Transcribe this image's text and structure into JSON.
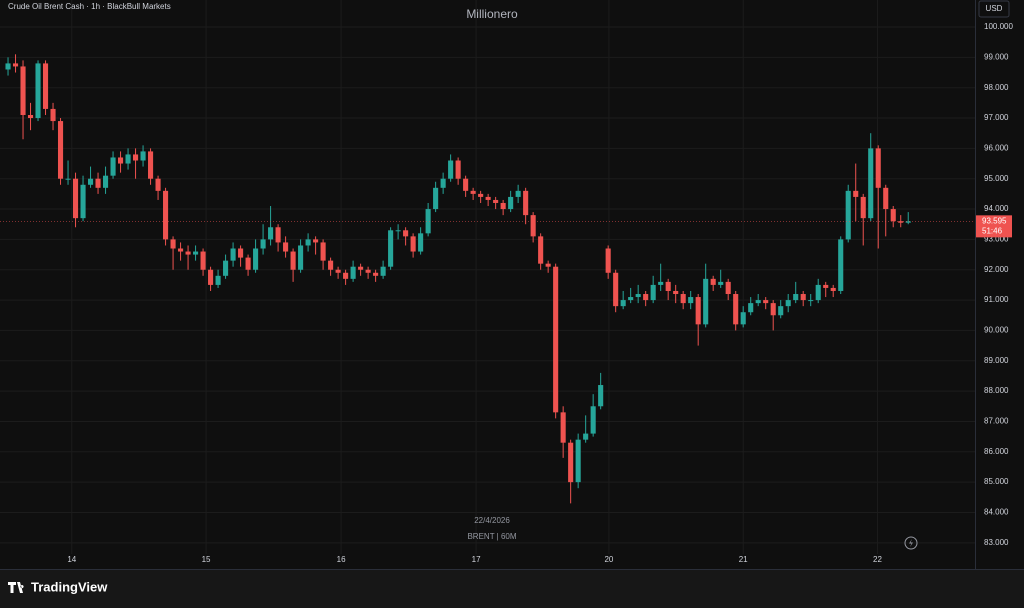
{
  "chart_data": {
    "type": "candlestick",
    "title": "Crude Oil Brent Cash · 1h · BlackBull Markets",
    "watermark": "Millionero",
    "currency": "USD",
    "countdown": "51:46",
    "date_label": "22/4/2026",
    "symbol_label": "BRENT | 60M",
    "brand": "TradingView",
    "up_color": "#26a69a",
    "down_color": "#ef5350",
    "grid": true,
    "x": [
      0,
      1,
      2,
      3,
      4,
      5,
      6,
      7,
      8,
      9,
      10,
      11,
      12,
      13,
      14,
      15,
      16,
      17,
      18,
      19,
      20,
      21,
      22,
      23,
      24,
      25,
      26,
      27,
      28,
      29,
      30,
      31,
      32,
      33,
      34,
      35,
      36,
      37,
      38,
      39,
      40,
      41,
      42,
      43,
      44,
      45,
      46,
      47,
      48,
      49,
      50,
      51,
      52,
      53,
      54,
      55,
      56,
      57,
      58,
      59,
      60,
      61,
      62,
      63,
      64,
      65,
      66,
      67,
      68,
      69,
      70,
      71,
      72,
      73,
      74,
      75,
      76,
      77,
      78,
      79,
      80,
      81,
      82,
      83,
      84,
      85,
      86,
      87,
      88,
      89,
      90,
      91,
      92,
      93,
      94,
      95,
      96,
      97,
      98,
      99,
      100,
      101,
      102,
      103,
      104,
      105,
      106,
      107,
      108,
      109,
      110,
      111,
      112,
      113,
      114,
      115,
      116,
      117,
      118,
      119,
      120
    ],
    "open": [
      98.6,
      98.8,
      98.7,
      97.1,
      97.0,
      98.8,
      97.3,
      96.9,
      95.0,
      95.0,
      93.7,
      94.8,
      95.0,
      94.7,
      95.1,
      95.7,
      95.5,
      95.8,
      95.6,
      95.9,
      95.0,
      94.6,
      93.0,
      92.7,
      92.6,
      92.5,
      92.6,
      92.0,
      91.5,
      91.8,
      92.3,
      92.7,
      92.4,
      92.0,
      92.7,
      93.0,
      93.4,
      92.9,
      92.6,
      92.0,
      92.8,
      93.0,
      92.9,
      92.3,
      92.0,
      91.9,
      91.7,
      92.1,
      92.0,
      91.9,
      91.8,
      92.1,
      93.3,
      93.3,
      93.1,
      92.6,
      93.2,
      94.0,
      94.7,
      95.0,
      95.6,
      95.0,
      94.6,
      94.5,
      94.4,
      94.3,
      94.2,
      94.0,
      94.4,
      94.6,
      93.8,
      93.1,
      92.2,
      92.1,
      87.3,
      86.3,
      85.0,
      86.4,
      86.6,
      87.5,
      92.7,
      91.9,
      90.8,
      91.0,
      91.1,
      91.2,
      91.0,
      91.5,
      91.6,
      91.3,
      91.2,
      90.9,
      91.1,
      90.2,
      91.7,
      91.5,
      91.6,
      91.2,
      90.2,
      90.6,
      90.9,
      91.0,
      90.9,
      90.5,
      90.8,
      91.0,
      91.2,
      91.0,
      91.0,
      91.5,
      91.4,
      91.3,
      93.0,
      94.6,
      94.4,
      93.7,
      96.0,
      94.7,
      94.0,
      93.6,
      93.55
    ],
    "high": [
      99.0,
      99.1,
      98.9,
      97.5,
      98.9,
      98.9,
      97.5,
      97.0,
      95.6,
      95.2,
      95.1,
      95.4,
      95.2,
      95.4,
      95.9,
      95.9,
      96.0,
      96.0,
      96.1,
      96.0,
      95.1,
      94.7,
      93.1,
      92.9,
      92.8,
      92.8,
      92.7,
      92.1,
      92.0,
      92.5,
      92.9,
      92.8,
      92.5,
      93.0,
      93.5,
      94.1,
      93.5,
      93.1,
      92.7,
      93.0,
      93.2,
      93.1,
      93.0,
      92.4,
      92.1,
      92.0,
      92.3,
      92.2,
      92.1,
      92.0,
      92.3,
      93.4,
      93.5,
      93.4,
      93.2,
      93.4,
      94.2,
      94.9,
      95.2,
      95.8,
      95.7,
      95.1,
      94.7,
      94.6,
      94.5,
      94.4,
      94.3,
      94.6,
      94.8,
      94.7,
      93.9,
      93.2,
      92.3,
      92.2,
      87.5,
      86.4,
      86.6,
      87.2,
      87.9,
      88.6,
      92.8,
      92.0,
      91.3,
      91.4,
      91.5,
      91.3,
      91.8,
      92.2,
      91.7,
      91.5,
      91.3,
      91.3,
      91.2,
      92.2,
      91.8,
      92.0,
      91.7,
      91.3,
      90.8,
      91.1,
      91.2,
      91.1,
      91.0,
      91.0,
      91.2,
      91.6,
      91.3,
      91.2,
      91.7,
      91.6,
      91.5,
      93.1,
      94.8,
      95.5,
      94.5,
      96.5,
      96.1,
      94.8,
      94.1,
      93.8,
      93.9
    ],
    "low": [
      98.4,
      98.5,
      96.3,
      96.6,
      96.9,
      97.1,
      96.6,
      94.8,
      94.8,
      93.4,
      93.6,
      94.7,
      94.5,
      94.5,
      95.0,
      95.2,
      95.3,
      95.0,
      95.4,
      94.8,
      94.3,
      92.8,
      92.0,
      92.3,
      92.0,
      92.3,
      91.8,
      91.3,
      91.4,
      91.7,
      92.1,
      92.1,
      91.8,
      91.9,
      92.5,
      92.8,
      92.6,
      92.4,
      91.6,
      91.9,
      92.6,
      92.5,
      92.0,
      91.8,
      91.7,
      91.5,
      91.6,
      91.8,
      91.7,
      91.6,
      91.7,
      92.0,
      93.0,
      92.8,
      92.4,
      92.5,
      93.1,
      93.9,
      94.5,
      94.9,
      94.8,
      94.4,
      94.3,
      94.2,
      94.1,
      94.0,
      93.8,
      93.9,
      94.2,
      93.5,
      92.9,
      92.0,
      91.9,
      87.1,
      85.8,
      84.3,
      84.8,
      86.3,
      86.5,
      87.4,
      91.7,
      90.6,
      90.7,
      90.9,
      90.9,
      90.8,
      90.9,
      91.3,
      91.0,
      90.9,
      90.7,
      90.7,
      89.5,
      90.1,
      91.3,
      91.4,
      91.0,
      90.0,
      90.1,
      90.5,
      90.8,
      90.7,
      90.0,
      90.4,
      90.6,
      90.9,
      90.8,
      90.8,
      90.9,
      91.1,
      91.1,
      91.2,
      92.9,
      93.6,
      92.8,
      93.6,
      92.7,
      93.1,
      93.4,
      93.4,
      93.5
    ],
    "close": [
      98.8,
      98.7,
      97.1,
      97.0,
      98.8,
      97.3,
      96.9,
      95.0,
      95.0,
      93.7,
      94.8,
      95.0,
      94.7,
      95.1,
      95.7,
      95.5,
      95.8,
      95.6,
      95.9,
      95.0,
      94.6,
      93.0,
      92.7,
      92.6,
      92.5,
      92.6,
      92.0,
      91.5,
      91.8,
      92.3,
      92.7,
      92.4,
      92.0,
      92.7,
      93.0,
      93.4,
      92.9,
      92.6,
      92.0,
      92.8,
      93.0,
      92.9,
      92.3,
      92.0,
      91.9,
      91.7,
      92.1,
      92.0,
      91.9,
      91.8,
      92.1,
      93.3,
      93.3,
      93.1,
      92.6,
      93.2,
      94.0,
      94.7,
      95.0,
      95.6,
      95.0,
      94.6,
      94.5,
      94.4,
      94.3,
      94.2,
      94.0,
      94.4,
      94.6,
      93.8,
      93.1,
      92.2,
      92.1,
      87.3,
      86.3,
      85.0,
      86.4,
      86.6,
      87.5,
      88.2,
      91.9,
      90.8,
      91.0,
      91.1,
      91.2,
      91.0,
      91.5,
      91.6,
      91.3,
      91.2,
      90.9,
      91.1,
      90.2,
      91.7,
      91.5,
      91.6,
      91.2,
      90.2,
      90.6,
      90.9,
      91.0,
      90.9,
      90.5,
      90.8,
      91.0,
      91.2,
      91.0,
      91.0,
      91.5,
      91.4,
      91.3,
      93.0,
      94.6,
      94.4,
      93.7,
      96.0,
      94.7,
      94.0,
      93.6,
      93.55,
      93.595
    ],
    "xlim": [
      -1.07,
      128.9
    ],
    "xticks": [
      {
        "value": 8.5,
        "label": "14"
      },
      {
        "value": 26.4,
        "label": "15"
      },
      {
        "value": 44.4,
        "label": "16"
      },
      {
        "value": 62.4,
        "label": "17"
      },
      {
        "value": 80.1,
        "label": "20"
      },
      {
        "value": 98,
        "label": "21"
      },
      {
        "value": 115.9,
        "label": "22"
      }
    ],
    "ylim": [
      82.17,
      100.89
    ],
    "yticks": [
      {
        "value": 83,
        "label": "83.000"
      },
      {
        "value": 84,
        "label": "84.000"
      },
      {
        "value": 85,
        "label": "85.000"
      },
      {
        "value": 86,
        "label": "86.000"
      },
      {
        "value": 87,
        "label": "87.000"
      },
      {
        "value": 88,
        "label": "88.000"
      },
      {
        "value": 89,
        "label": "89.000"
      },
      {
        "value": 90,
        "label": "90.000"
      },
      {
        "value": 91,
        "label": "91.000"
      },
      {
        "value": 92,
        "label": "92.000"
      },
      {
        "value": 93,
        "label": "93.000"
      },
      {
        "value": 94,
        "label": "94.000"
      },
      {
        "value": 95,
        "label": "95.000"
      },
      {
        "value": 96,
        "label": "96.000"
      },
      {
        "value": 97,
        "label": "97.000"
      },
      {
        "value": 98,
        "label": "98.000"
      },
      {
        "value": 99,
        "label": "99.000"
      },
      {
        "value": 100,
        "label": "100.000"
      }
    ]
  }
}
